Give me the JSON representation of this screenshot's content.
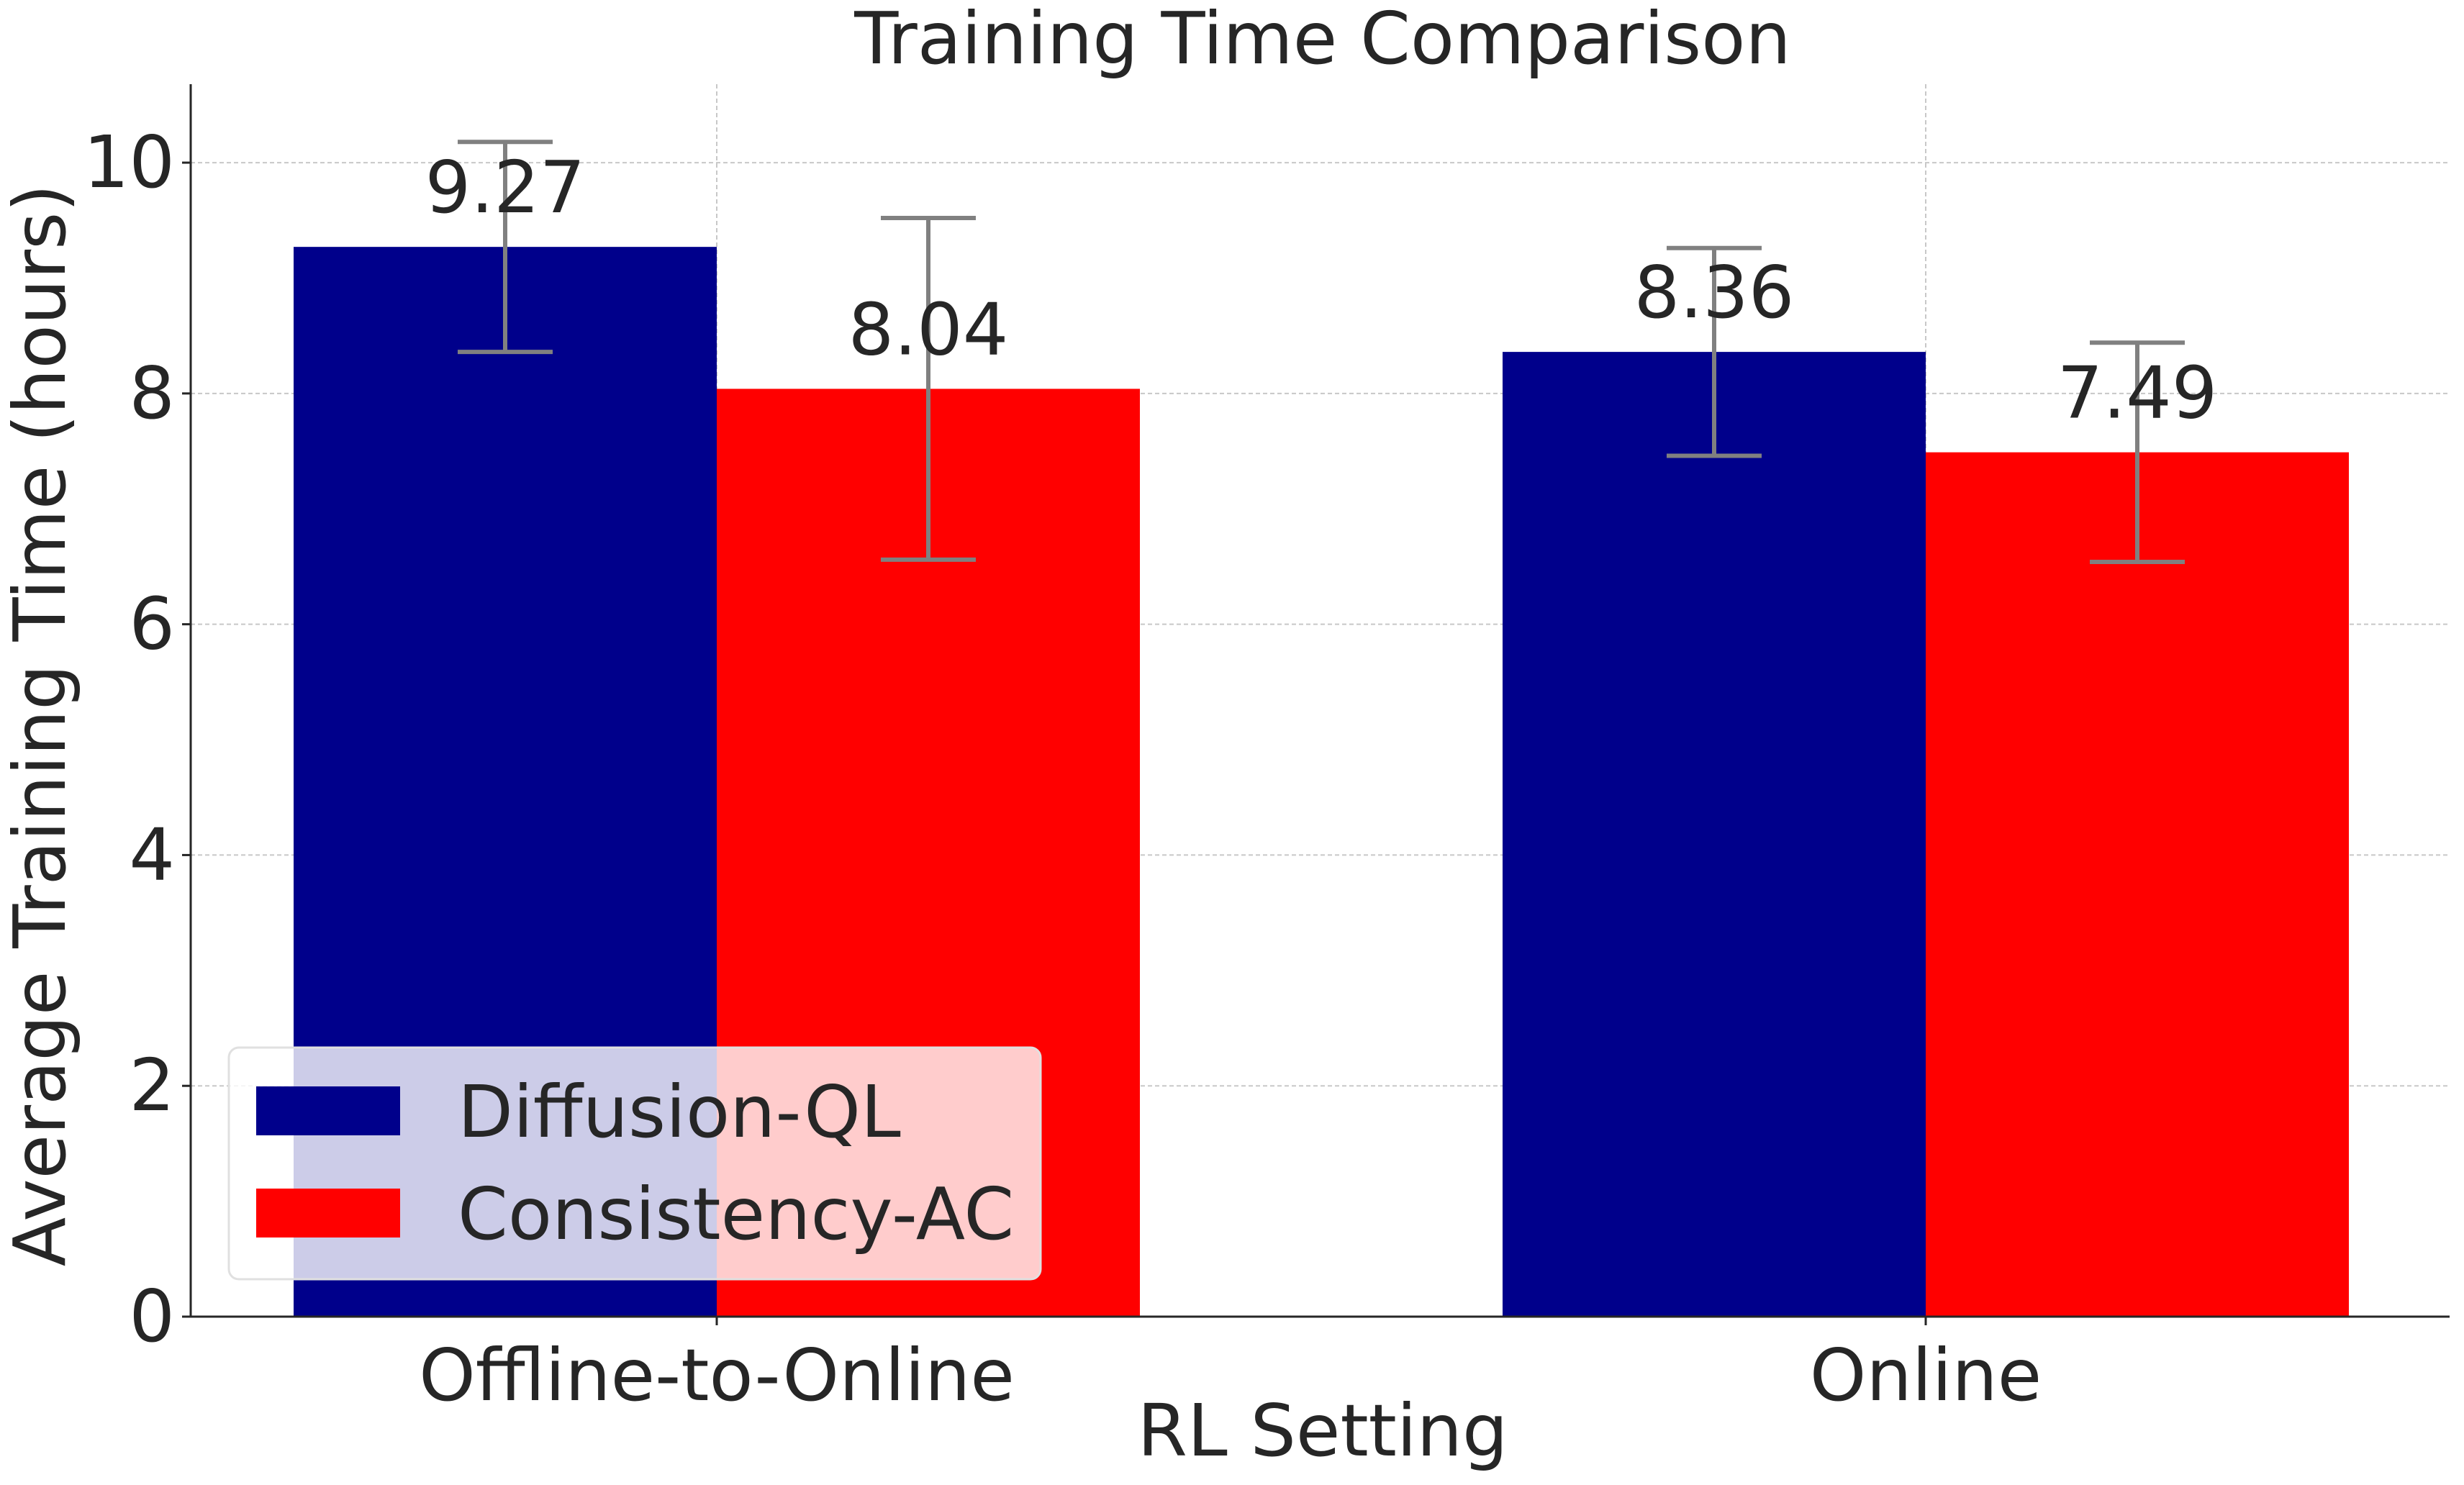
{
  "chart_data": {
    "type": "bar",
    "title": "Training Time Comparison",
    "xlabel": "RL Setting",
    "ylabel": "Average Training Time (hours)",
    "categories": [
      "Offline-to-Online",
      "Online"
    ],
    "series": [
      {
        "name": "Diffusion-QL",
        "color": "#00008b",
        "values": [
          9.27,
          8.36
        ],
        "value_labels": [
          "9.27",
          "8.36"
        ],
        "error": [
          0.91,
          0.9
        ]
      },
      {
        "name": "Consistency-AC",
        "color": "#ff0000",
        "values": [
          8.04,
          7.49
        ],
        "value_labels": [
          "8.04",
          "7.49"
        ],
        "error": [
          1.48,
          0.95
        ]
      }
    ],
    "ylim": [
      0,
      10.68
    ],
    "yticks": [
      0,
      2,
      4,
      6,
      8,
      10
    ],
    "ytick_labels": [
      "0",
      "2",
      "4",
      "6",
      "8",
      "10"
    ],
    "grid": true,
    "legend_position": "lower-left",
    "error_bar_color": "#808080"
  }
}
